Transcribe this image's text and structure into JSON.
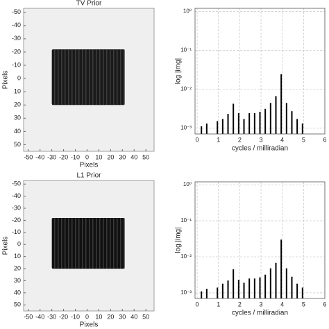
{
  "chart_data": [
    {
      "type": "image",
      "title": "TV Prior",
      "xlabel": "Pixels",
      "ylabel": "Pixels",
      "xlim": [
        -54,
        57
      ],
      "ylim": [
        -53,
        55
      ],
      "yinvert": true,
      "xticks": [
        -50,
        -40,
        -30,
        -20,
        -10,
        0,
        10,
        20,
        30,
        40,
        50
      ],
      "yticks": [
        -50,
        -40,
        -30,
        -20,
        -10,
        0,
        10,
        20,
        30,
        40,
        50
      ],
      "rect_x": [
        -30,
        32
      ],
      "rect_y": [
        -22,
        20
      ],
      "color": "#1a1a1a"
    },
    {
      "type": "bar",
      "xlabel": "cycles / milliradian",
      "ylabel": "log |img|",
      "log": true,
      "grid": true,
      "color": "#000000",
      "xlim": [
        -0.1,
        6
      ],
      "xticks": [
        0,
        1,
        2,
        3,
        4,
        5,
        6
      ],
      "ylim": [
        0.0007,
        1.2
      ],
      "yticks": [
        {
          "value": 1,
          "label": "10⁰"
        },
        {
          "value": 0.1,
          "label": "10⁻¹"
        },
        {
          "value": 0.01,
          "label": "10⁻²"
        },
        {
          "value": 0.001,
          "label": "10⁻³"
        }
      ],
      "x": [
        0.2,
        0.45,
        0.95,
        1.2,
        1.45,
        1.7,
        1.95,
        2.2,
        2.45,
        2.7,
        2.95,
        3.2,
        3.45,
        3.7,
        3.95,
        4.2,
        4.45,
        4.7,
        4.95
      ],
      "values": [
        0.0011,
        0.0013,
        0.0015,
        0.0017,
        0.0023,
        0.0042,
        0.0024,
        0.0017,
        0.0024,
        0.0024,
        0.0026,
        0.0031,
        0.0044,
        0.0066,
        0.024,
        0.0044,
        0.0027,
        0.0017,
        0.0013
      ]
    },
    {
      "type": "image",
      "title": "L1 Prior",
      "xlabel": "Pixels",
      "ylabel": "Pixels",
      "xlim": [
        -54,
        57
      ],
      "ylim": [
        -53,
        55
      ],
      "yinvert": true,
      "xticks": [
        -50,
        -40,
        -30,
        -20,
        -10,
        0,
        10,
        20,
        30,
        40,
        50
      ],
      "yticks": [
        -50,
        -40,
        -30,
        -20,
        -10,
        0,
        10,
        20,
        30,
        40,
        50
      ],
      "rect_x": [
        -30,
        32
      ],
      "rect_y": [
        -22,
        20
      ],
      "color": "#111111"
    },
    {
      "type": "bar",
      "xlabel": "cycles / milliradian",
      "ylabel": "log |img|",
      "log": true,
      "grid": true,
      "color": "#000000",
      "xlim": [
        -0.1,
        6
      ],
      "xticks": [
        0,
        1,
        2,
        3,
        4,
        5,
        6
      ],
      "ylim": [
        0.0007,
        1.2
      ],
      "yticks": [
        {
          "value": 1,
          "label": "10⁰"
        },
        {
          "value": 0.1,
          "label": "10⁻¹"
        },
        {
          "value": 0.01,
          "label": "10⁻²"
        },
        {
          "value": 0.001,
          "label": "10⁻³"
        }
      ],
      "x": [
        0.2,
        0.45,
        0.95,
        1.2,
        1.45,
        1.7,
        1.95,
        2.2,
        2.45,
        2.7,
        2.95,
        3.2,
        3.45,
        3.7,
        3.95,
        4.2,
        4.45,
        4.7,
        4.95
      ],
      "values": [
        0.0011,
        0.0013,
        0.0014,
        0.0018,
        0.0022,
        0.0045,
        0.0023,
        0.0019,
        0.0025,
        0.0025,
        0.0027,
        0.0032,
        0.0048,
        0.0068,
        0.03,
        0.0048,
        0.0028,
        0.0018,
        0.0014
      ]
    }
  ]
}
